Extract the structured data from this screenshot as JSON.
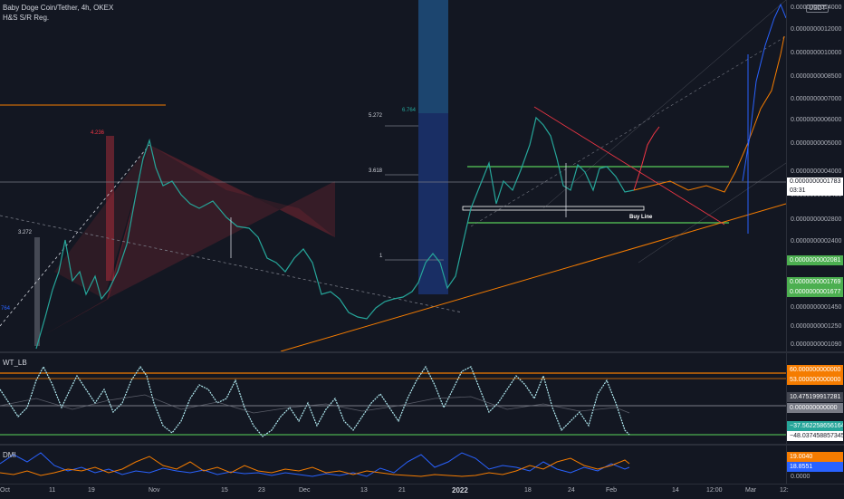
{
  "header": {
    "symbol_title": "Baby Doge Coin/Tether, 4h, OKEX",
    "indicator_name": "H&S S/R Reg."
  },
  "price_axis": {
    "currency": "USDT",
    "ticks": [
      "0.0000000014000",
      "0.0000000012000",
      "0.0000000010000",
      "0.0000000008500",
      "0.0000000007000",
      "0.0000000006000",
      "0.0000000005000",
      "0.0000000004000",
      "0.0000000003400",
      "0.0000000002800",
      "0.0000000002400",
      "0.0000000001450",
      "0.0000000001250",
      "0.0000000001090"
    ],
    "current_price": "0.0000000001783",
    "countdown": "03:31",
    "level_badges": [
      "0.0000000002081",
      "0.0000000001769",
      "0.0000000001677"
    ]
  },
  "fib_labels": {
    "left_top": "4.236",
    "left_mid": "3.272",
    "left_low": "764",
    "mid_a": "6.764",
    "mid_b": "5.272",
    "mid_c": "3.618",
    "mid_d": "1"
  },
  "annotation": {
    "buy_line": "Buy Line"
  },
  "wt_pane": {
    "name": "WT_LB",
    "badges": {
      "ob": "60.000000000000",
      "ob2": "53.000000000000",
      "val": "10.475199917281",
      "zero": "0.000000000000",
      "wt1": "−37.562258656164",
      "wt2": "−48.037458857345"
    }
  },
  "dmi_pane": {
    "name": "DMI",
    "badges": {
      "plus": "19.0040",
      "minus": "18.8551"
    },
    "axis_zero": "0.0000"
  },
  "time_axis": [
    "Oct",
    "11",
    "19",
    "Nov",
    "15",
    "23",
    "Dec",
    "13",
    "21",
    "2022",
    "18",
    "24",
    "Feb",
    "14",
    "12:00",
    "Mar",
    "12:"
  ],
  "colors": {
    "bg": "#131722",
    "green": "#4caf50",
    "red": "#f23645",
    "orange": "#f57c00",
    "blue": "#2962ff",
    "teal": "#26a69a"
  }
}
